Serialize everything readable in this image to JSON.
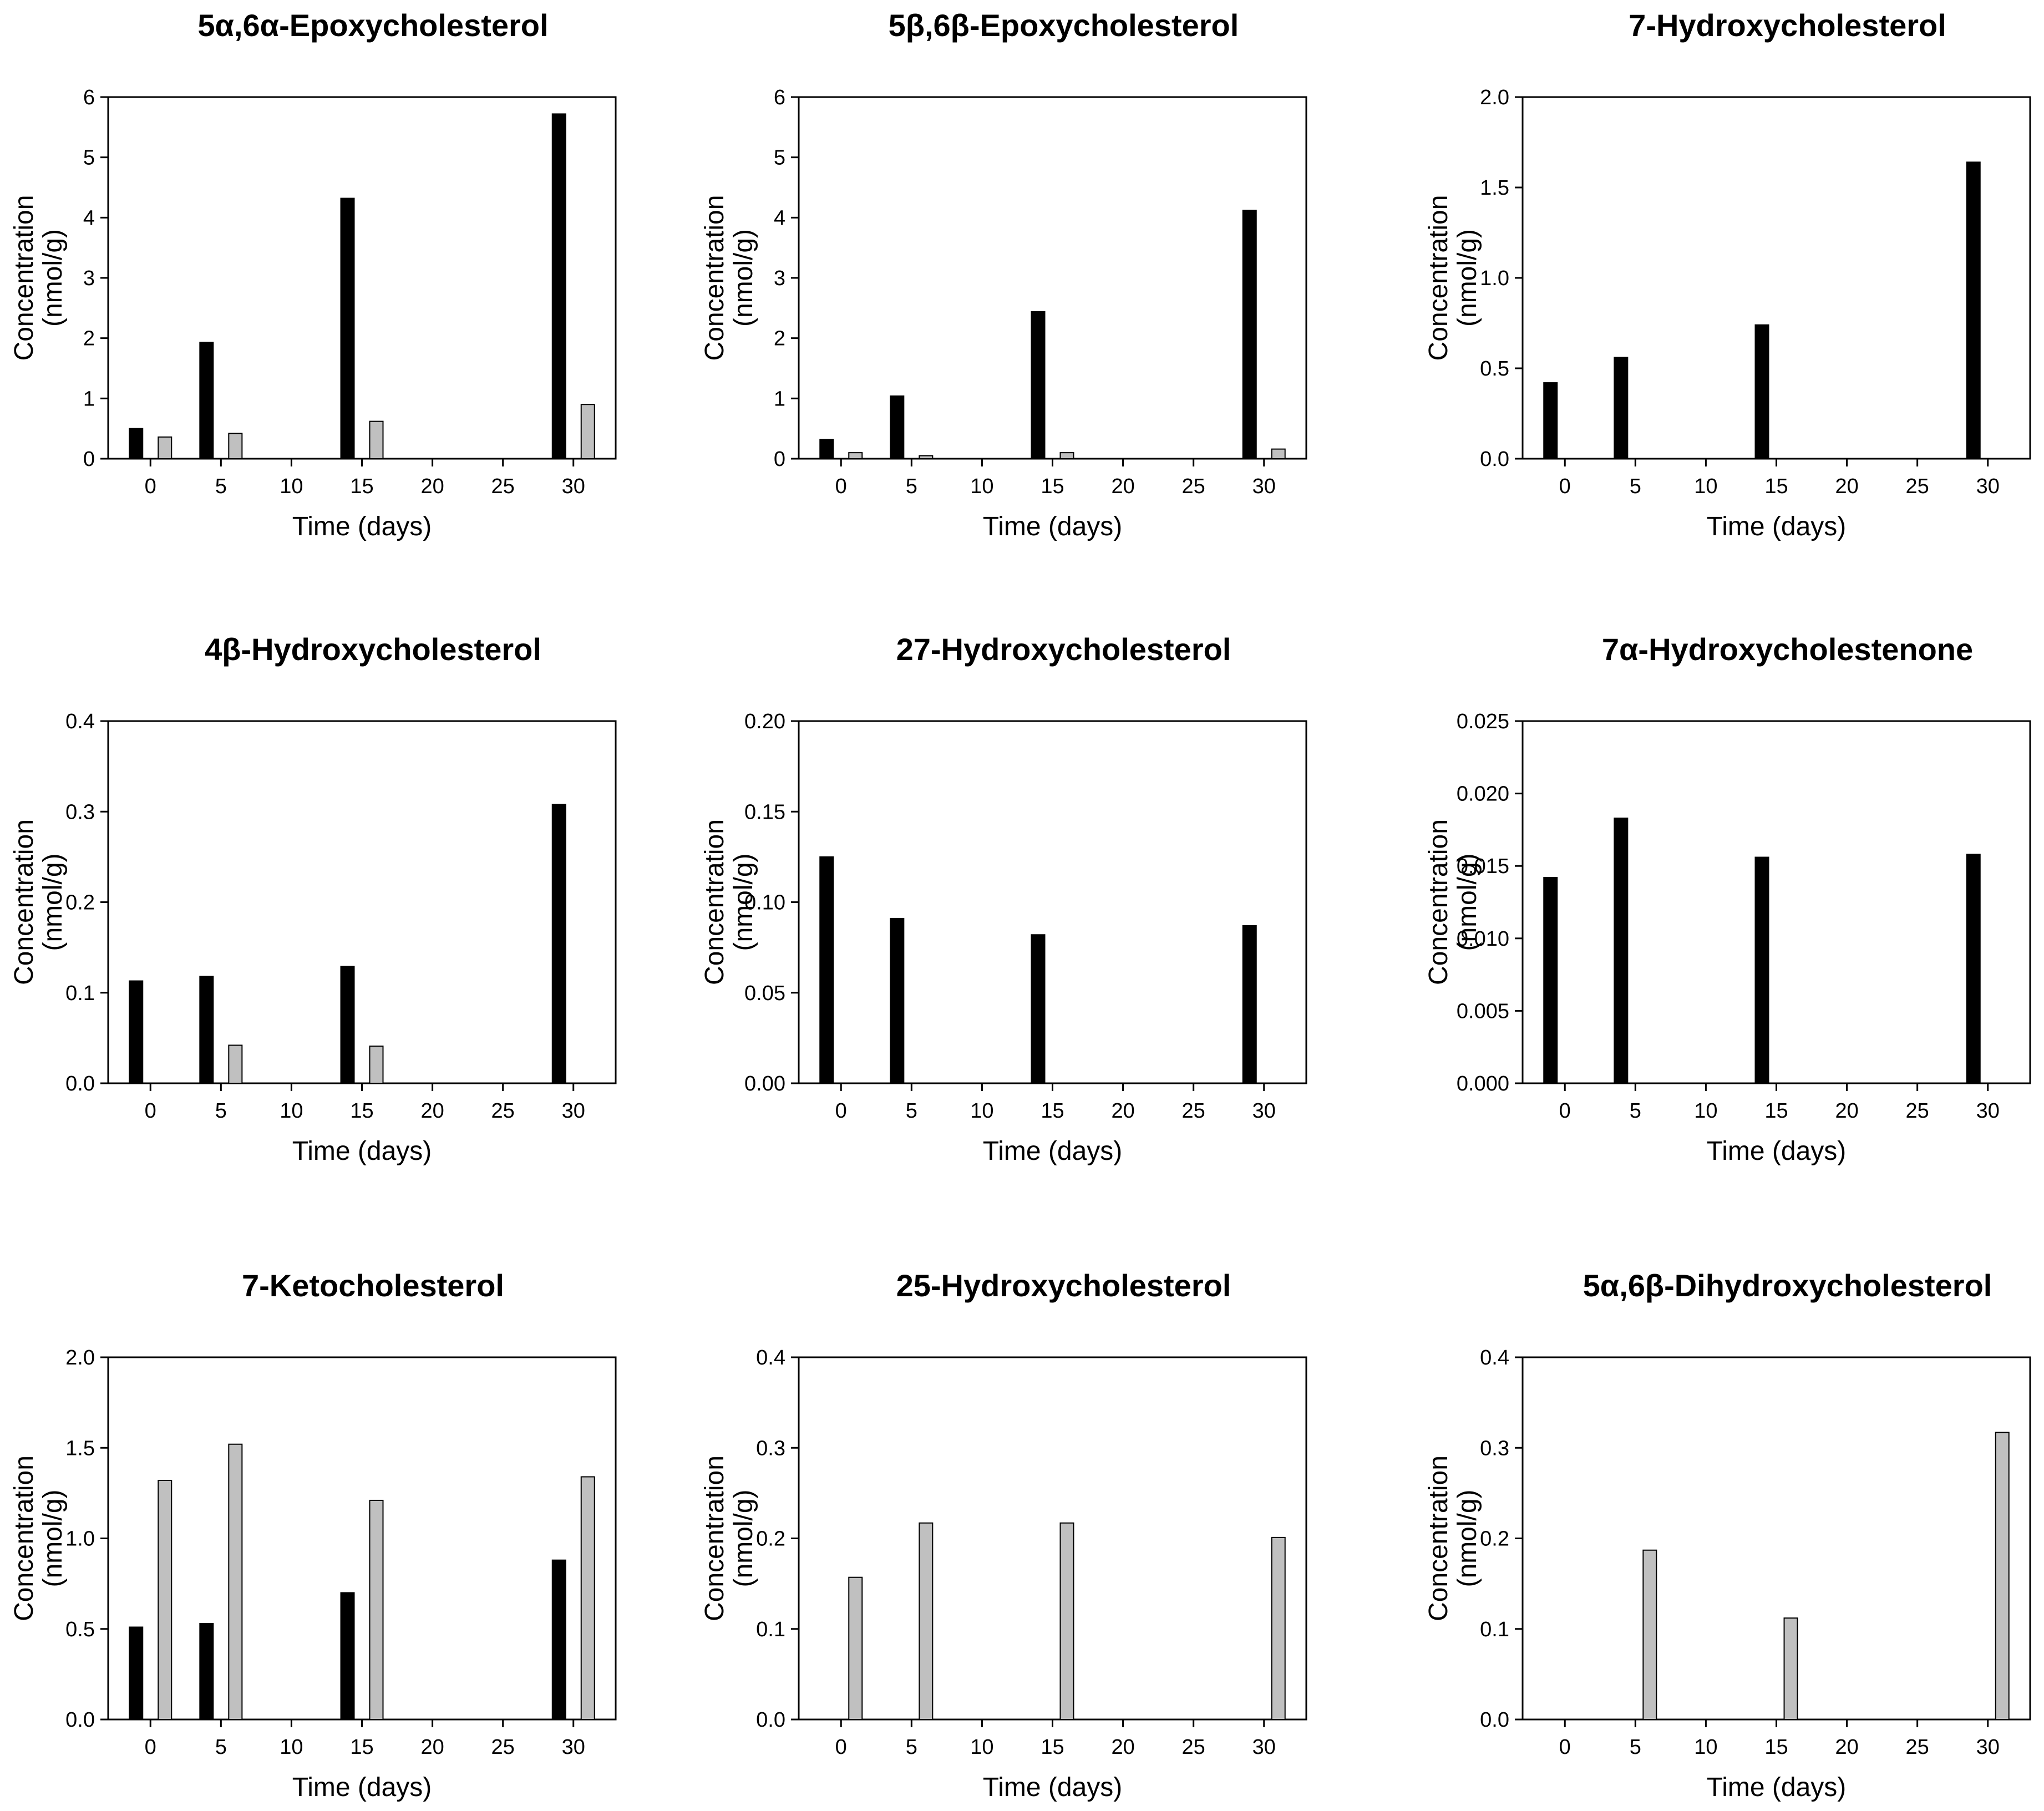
{
  "figure": {
    "series": [
      {
        "name": "black",
        "color": "#000000"
      },
      {
        "name": "gray",
        "color": "#c0c0c0"
      }
    ]
  },
  "chart_data": [
    {
      "type": "bar",
      "title": "5α,6α-Epoxycholesterol",
      "xlabel": "Time (days)",
      "ylabel": [
        "Concentration",
        "(nmol/g)"
      ],
      "xlim": [
        -3,
        33
      ],
      "xticks": [
        0,
        5,
        10,
        15,
        20,
        25,
        30
      ],
      "ylim": [
        0,
        6
      ],
      "yticks": [
        "0",
        "1",
        "2",
        "3",
        "4",
        "5",
        "6"
      ],
      "x": [
        0,
        5,
        15,
        30
      ],
      "series": [
        {
          "name": "black",
          "values": [
            0.5,
            1.93,
            4.32,
            5.72
          ]
        },
        {
          "name": "gray",
          "values": [
            0.36,
            0.42,
            0.62,
            0.9
          ]
        }
      ]
    },
    {
      "type": "bar",
      "title": "5β,6β-Epoxycholesterol",
      "xlabel": "Time (days)",
      "ylabel": [
        "Concentration",
        "(nmol/g)"
      ],
      "xlim": [
        -3,
        33
      ],
      "xticks": [
        0,
        5,
        10,
        15,
        20,
        25,
        30
      ],
      "ylim": [
        0,
        6
      ],
      "yticks": [
        "0",
        "1",
        "2",
        "3",
        "4",
        "5",
        "6"
      ],
      "x": [
        0,
        5,
        15,
        30
      ],
      "series": [
        {
          "name": "black",
          "values": [
            0.32,
            1.04,
            2.44,
            4.12
          ]
        },
        {
          "name": "gray",
          "values": [
            0.1,
            0.05,
            0.1,
            0.16
          ]
        }
      ]
    },
    {
      "type": "bar",
      "title": "7-Hydroxycholesterol",
      "xlabel": "Time (days)",
      "ylabel": [
        "Concentration",
        "(nmol/g)"
      ],
      "xlim": [
        -3,
        33
      ],
      "xticks": [
        0,
        5,
        10,
        15,
        20,
        25,
        30
      ],
      "ylim": [
        0,
        2
      ],
      "yticks": [
        "0.0",
        "0.5",
        "1.0",
        "1.5",
        "2.0"
      ],
      "x": [
        0,
        5,
        15,
        30
      ],
      "series": [
        {
          "name": "black",
          "values": [
            0.42,
            0.56,
            0.74,
            1.64
          ]
        }
      ]
    },
    {
      "type": "bar",
      "title": "4β-Hydroxycholesterol",
      "xlabel": "Time (days)",
      "ylabel": [
        "Concentration",
        "(nmol/g)"
      ],
      "xlim": [
        -3,
        33
      ],
      "xticks": [
        0,
        5,
        10,
        15,
        20,
        25,
        30
      ],
      "ylim": [
        0,
        0.4
      ],
      "yticks": [
        "0.0",
        "0.1",
        "0.2",
        "0.3",
        "0.4"
      ],
      "x": [
        0,
        5,
        15,
        30
      ],
      "series": [
        {
          "name": "black",
          "values": [
            0.113,
            0.118,
            0.129,
            0.308
          ]
        },
        {
          "name": "gray",
          "values": [
            null,
            0.042,
            0.041,
            null
          ]
        }
      ]
    },
    {
      "type": "bar",
      "title": "27-Hydroxycholesterol",
      "xlabel": "Time (days)",
      "ylabel": [
        "Concentration",
        "(nmol/g)"
      ],
      "xlim": [
        -3,
        33
      ],
      "xticks": [
        0,
        5,
        10,
        15,
        20,
        25,
        30
      ],
      "ylim": [
        0,
        0.2
      ],
      "yticks": [
        "0.00",
        "0.05",
        "0.10",
        "0.15",
        "0.20"
      ],
      "x": [
        0,
        5,
        15,
        30
      ],
      "series": [
        {
          "name": "black",
          "values": [
            0.125,
            0.091,
            0.082,
            0.087
          ]
        }
      ]
    },
    {
      "type": "bar",
      "title": "7α-Hydroxycholestenone",
      "xlabel": "Time (days)",
      "ylabel": [
        "Concentration",
        "(nmol/g)"
      ],
      "xlim": [
        -3,
        33
      ],
      "xticks": [
        0,
        5,
        10,
        15,
        20,
        25,
        30
      ],
      "ylim": [
        0,
        0.025
      ],
      "yticks": [
        "0.000",
        "0.005",
        "0.010",
        "0.015",
        "0.020",
        "0.025"
      ],
      "x": [
        0,
        5,
        15,
        30
      ],
      "series": [
        {
          "name": "black",
          "values": [
            0.0142,
            0.0183,
            0.0156,
            0.0158
          ]
        }
      ]
    },
    {
      "type": "bar",
      "title": "7-Ketocholesterol",
      "xlabel": "Time (days)",
      "ylabel": [
        "Concentration",
        "(nmol/g)"
      ],
      "xlim": [
        -3,
        33
      ],
      "xticks": [
        0,
        5,
        10,
        15,
        20,
        25,
        30
      ],
      "ylim": [
        0,
        2
      ],
      "yticks": [
        "0.0",
        "0.5",
        "1.0",
        "1.5",
        "2.0"
      ],
      "x": [
        0,
        5,
        15,
        30
      ],
      "series": [
        {
          "name": "black",
          "values": [
            0.51,
            0.53,
            0.7,
            0.88
          ]
        },
        {
          "name": "gray",
          "values": [
            1.32,
            1.52,
            1.21,
            1.34
          ]
        }
      ]
    },
    {
      "type": "bar",
      "title": "25-Hydroxycholesterol",
      "xlabel": "Time (days)",
      "ylabel": [
        "Concentration",
        "(nmol/g)"
      ],
      "xlim": [
        -3,
        33
      ],
      "xticks": [
        0,
        5,
        10,
        15,
        20,
        25,
        30
      ],
      "ylim": [
        0,
        0.4
      ],
      "yticks": [
        "0.0",
        "0.1",
        "0.2",
        "0.3",
        "0.4"
      ],
      "x": [
        0,
        5,
        15,
        30
      ],
      "series": [
        {
          "name": "gray",
          "values": [
            0.157,
            0.217,
            0.217,
            0.201
          ]
        }
      ]
    },
    {
      "type": "bar",
      "title": "5α,6β-Dihydroxycholesterol",
      "xlabel": "Time (days)",
      "ylabel": [
        "Concentration",
        "(nmol/g)"
      ],
      "xlim": [
        -3,
        33
      ],
      "xticks": [
        0,
        5,
        10,
        15,
        20,
        25,
        30
      ],
      "ylim": [
        0,
        0.4
      ],
      "yticks": [
        "0.0",
        "0.1",
        "0.2",
        "0.3",
        "0.4"
      ],
      "x": [
        5,
        15,
        30
      ],
      "series": [
        {
          "name": "gray",
          "values": [
            0.187,
            0.112,
            0.317
          ]
        }
      ]
    }
  ]
}
